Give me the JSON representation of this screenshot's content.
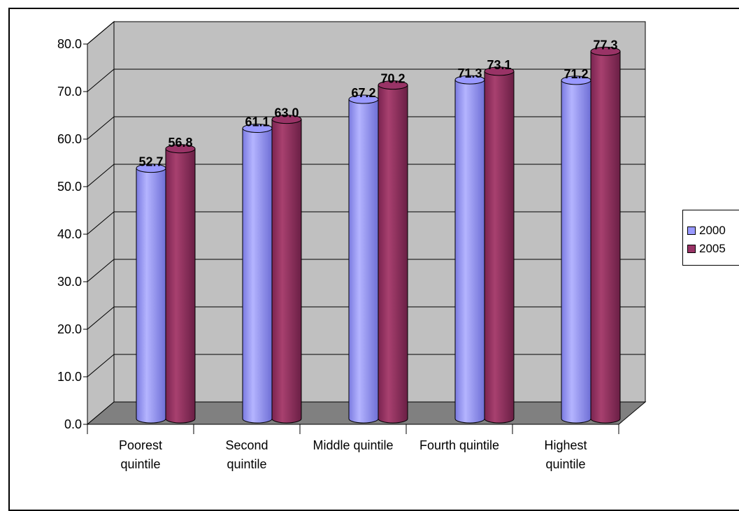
{
  "chart_data": {
    "type": "bar",
    "title": "",
    "xlabel": "",
    "ylabel": "",
    "ylim": [
      0,
      80
    ],
    "yticks": [
      "0.0",
      "10.0",
      "20.0",
      "30.0",
      "40.0",
      "50.0",
      "60.0",
      "70.0",
      "80.0"
    ],
    "categories": [
      [
        "Poorest",
        "quintile"
      ],
      [
        "Second",
        "quintile"
      ],
      [
        "Middle quintile"
      ],
      [
        "Fourth quintile"
      ],
      [
        "Highest",
        "quintile"
      ]
    ],
    "series": [
      {
        "name": "2000",
        "color": "#9999ff",
        "values": [
          52.7,
          61.1,
          67.2,
          71.3,
          71.2
        ],
        "labels": [
          "52.7",
          "61.1",
          "67.2",
          "71.3",
          "71.2"
        ]
      },
      {
        "name": "2005",
        "color": "#993366",
        "values": [
          56.8,
          63.0,
          70.2,
          73.1,
          77.3
        ],
        "labels": [
          "56.8",
          "63.0",
          "70.2",
          "73.1",
          "77.3"
        ]
      }
    ],
    "grid": true,
    "legend": "right",
    "style": "3d-cylinder"
  },
  "legend": {
    "items": [
      {
        "label": "2000",
        "color": "#9999ff"
      },
      {
        "label": "2005",
        "color": "#993366"
      }
    ]
  }
}
